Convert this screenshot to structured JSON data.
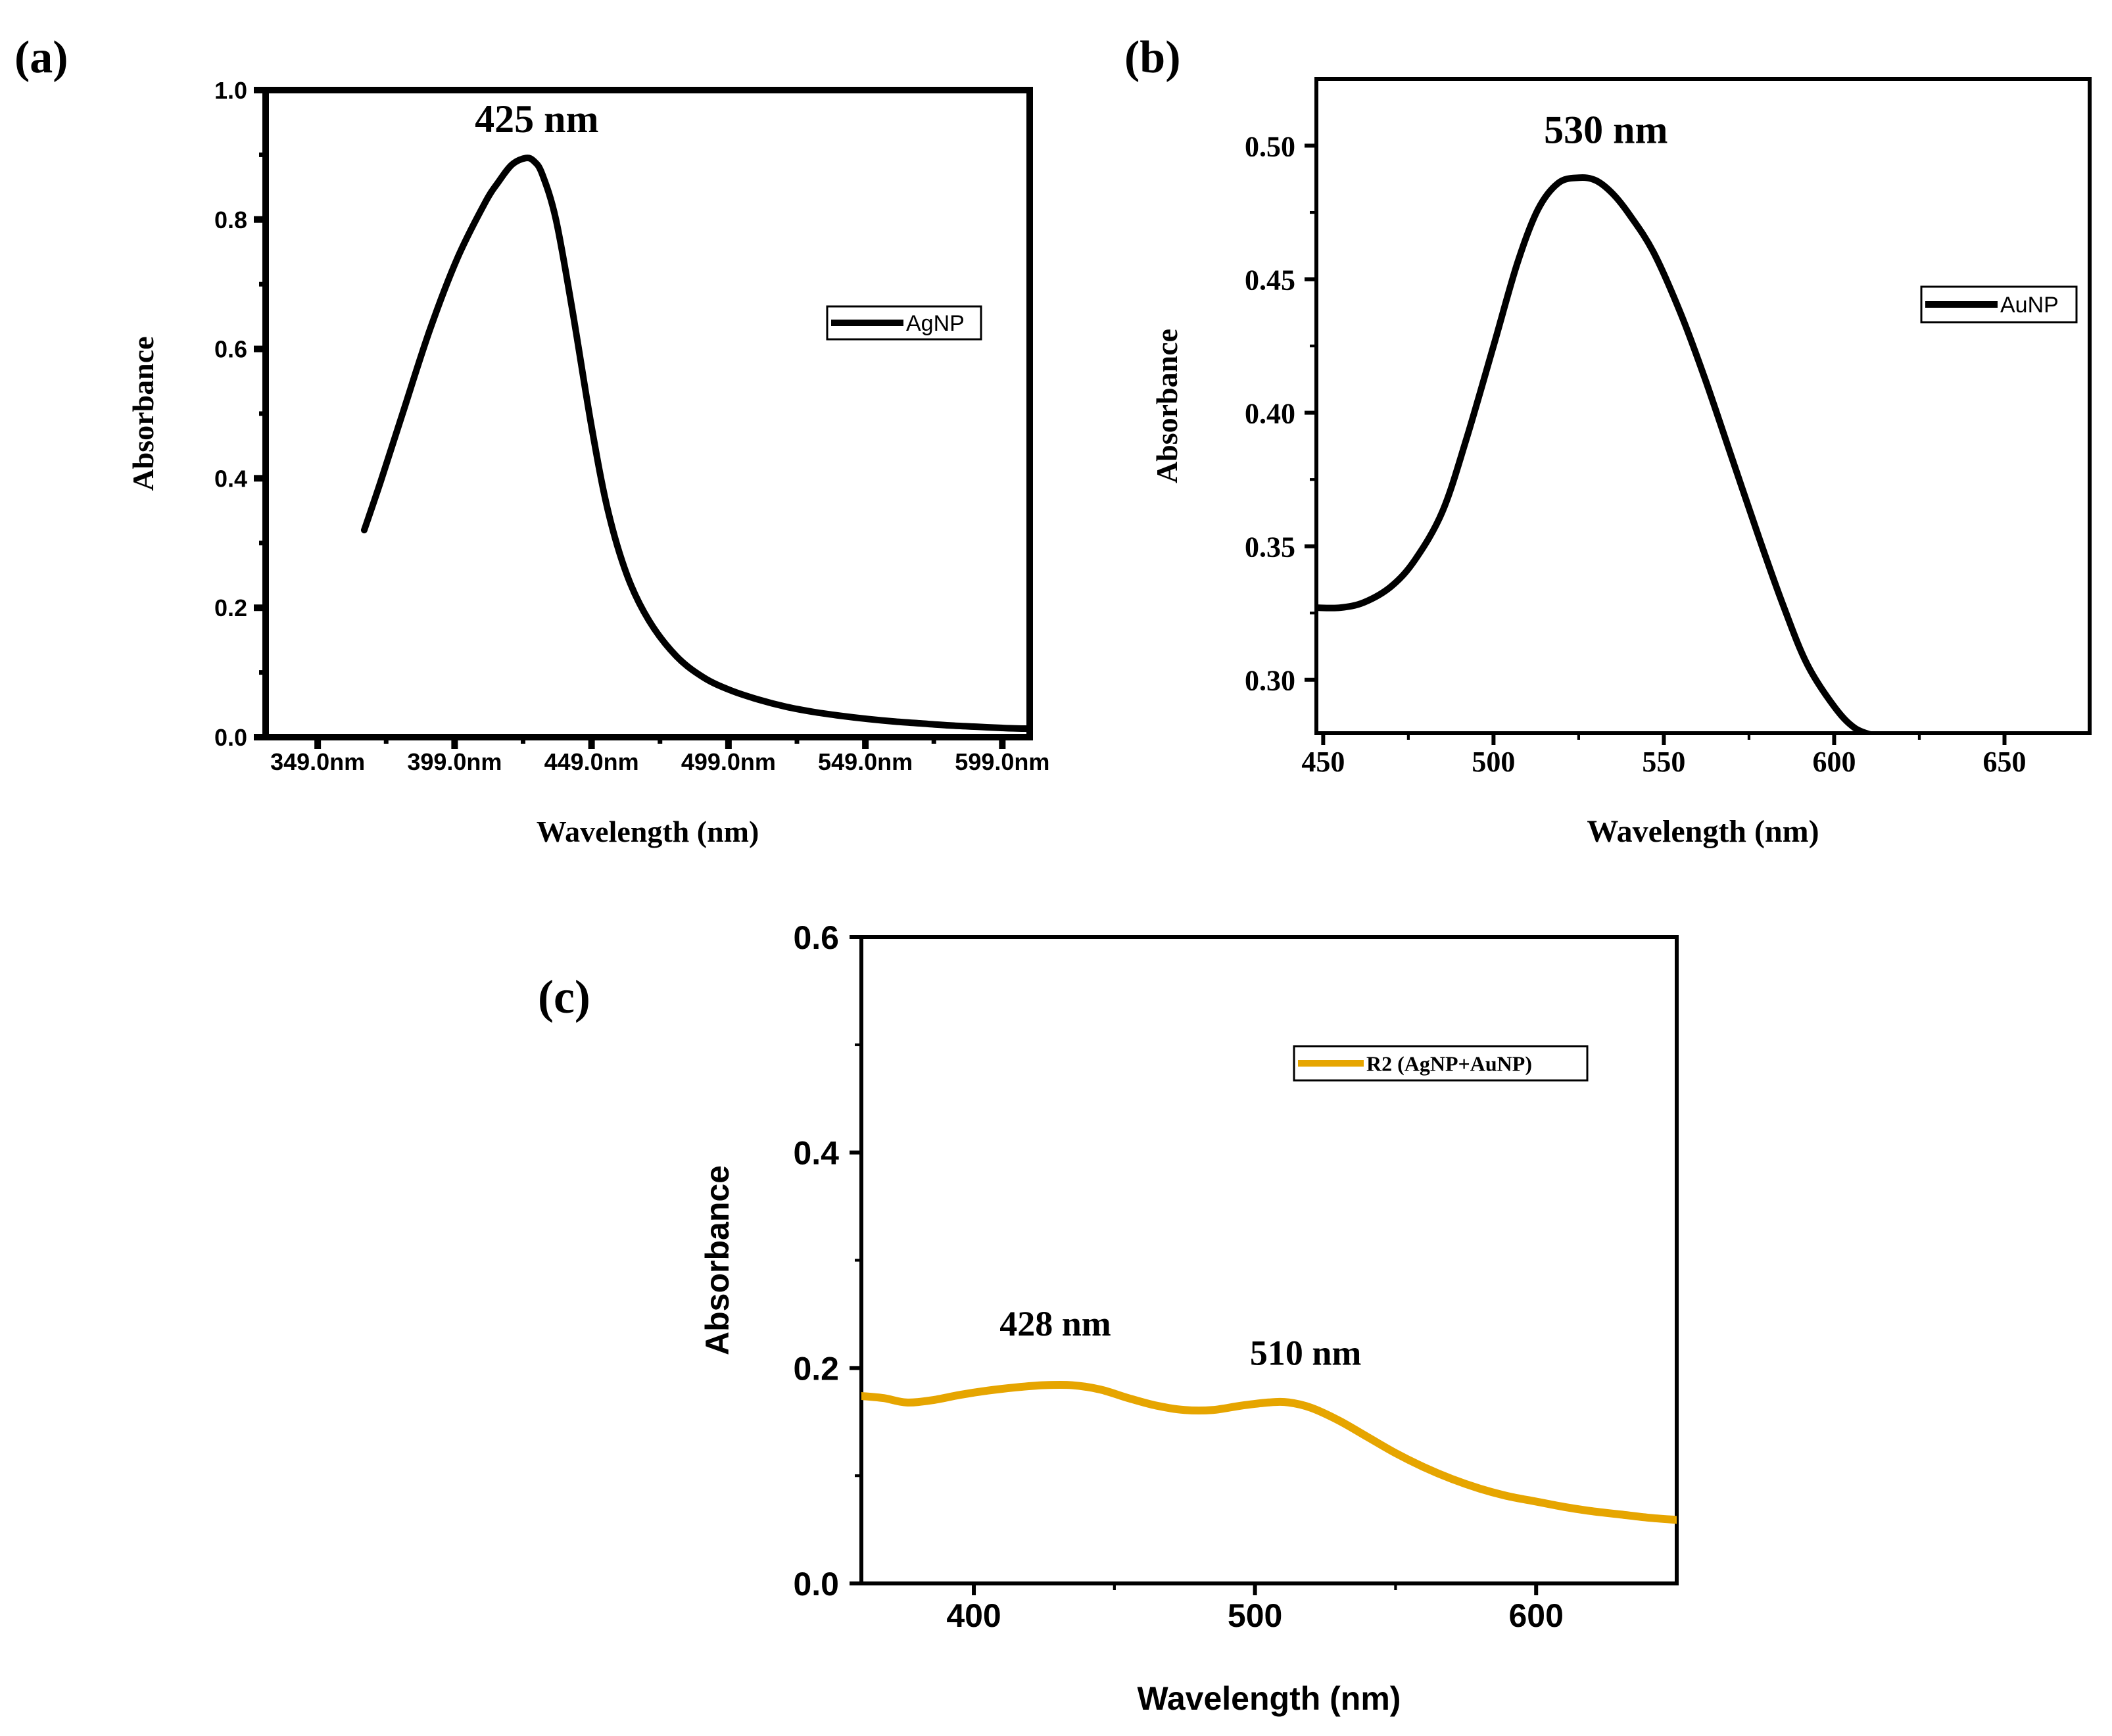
{
  "chart_data": [
    {
      "id": "a",
      "panel_label": "(a)",
      "type": "line",
      "title": "",
      "xlabel": "Wavelength (nm)",
      "ylabel": "Absorbance",
      "xlim": [
        330,
        609
      ],
      "ylim": [
        0,
        1.0
      ],
      "xticks": [
        349,
        399,
        449,
        499,
        549,
        599
      ],
      "xtick_labels": [
        "349.0nm",
        "399.0nm",
        "449.0nm",
        "499.0nm",
        "549.0nm",
        "599.0nm"
      ],
      "yticks": [
        0,
        0.2,
        0.4,
        0.6,
        0.8,
        1.0
      ],
      "ytick_labels": [
        "0.0",
        "0.2",
        "0.4",
        "0.6",
        "0.8",
        "1.0"
      ],
      "annotations": [
        {
          "text": "425 nm",
          "x": 429,
          "y": 0.935
        }
      ],
      "legend": {
        "position": "top-right",
        "entries": [
          "AgNP"
        ]
      },
      "series": [
        {
          "name": "AgNP",
          "color": "#000000",
          "x": [
            366,
            372,
            380,
            390,
            400,
            410,
            415,
            420,
            425,
            428,
            431,
            436,
            442,
            449,
            455,
            462,
            470,
            480,
            490,
            500,
            510,
            520,
            530,
            540,
            550,
            560,
            570,
            580,
            590,
            600,
            609
          ],
          "y": [
            0.32,
            0.395,
            0.5,
            0.63,
            0.74,
            0.825,
            0.858,
            0.885,
            0.895,
            0.89,
            0.87,
            0.8,
            0.66,
            0.48,
            0.35,
            0.25,
            0.18,
            0.125,
            0.092,
            0.072,
            0.058,
            0.047,
            0.039,
            0.033,
            0.028,
            0.024,
            0.021,
            0.018,
            0.016,
            0.014,
            0.013
          ]
        }
      ]
    },
    {
      "id": "b",
      "panel_label": "(b)",
      "type": "line",
      "title": "",
      "xlabel": "Wavelength (nm)",
      "ylabel": "Absorbance",
      "xlim": [
        448,
        675
      ],
      "ylim": [
        0.28,
        0.525
      ],
      "xticks": [
        450,
        500,
        550,
        600,
        650
      ],
      "xtick_labels": [
        "450",
        "500",
        "550",
        "600",
        "650"
      ],
      "yticks": [
        0.3,
        0.35,
        0.4,
        0.45,
        0.5
      ],
      "ytick_labels": [
        "0.30",
        "0.35",
        "0.40",
        "0.45",
        "0.50"
      ],
      "annotations": [
        {
          "text": "530 nm",
          "x": 533,
          "y": 0.501
        }
      ],
      "legend": {
        "position": "top-right",
        "entries": [
          "AuNP"
        ]
      },
      "series": [
        {
          "name": "AuNP",
          "color": "#000000",
          "x": [
            448,
            455,
            462,
            470,
            477,
            485,
            492,
            500,
            507,
            513,
            519,
            525,
            530,
            535,
            540,
            547,
            555,
            562,
            570,
            578,
            585,
            592,
            600,
            606,
            612
          ],
          "y": [
            0.327,
            0.327,
            0.329,
            0.335,
            0.345,
            0.363,
            0.39,
            0.425,
            0.456,
            0.476,
            0.486,
            0.488,
            0.487,
            0.482,
            0.474,
            0.46,
            0.437,
            0.413,
            0.383,
            0.353,
            0.328,
            0.306,
            0.29,
            0.282,
            0.279
          ]
        }
      ]
    },
    {
      "id": "c",
      "panel_label": "(c)",
      "type": "line",
      "title": "",
      "xlabel": "Wavelength (nm)",
      "ylabel": "Absorbance",
      "xlim": [
        360,
        650
      ],
      "ylim": [
        0,
        0.6
      ],
      "xticks": [
        400,
        500,
        600
      ],
      "xtick_labels": [
        "400",
        "500",
        "600"
      ],
      "yticks": [
        0,
        0.2,
        0.4,
        0.6
      ],
      "ytick_labels": [
        "0.0",
        "0.2",
        "0.4",
        "0.6"
      ],
      "annotations": [
        {
          "text": "428 nm",
          "x": 429,
          "y": 0.23
        },
        {
          "text": "510 nm",
          "x": 518,
          "y": 0.203
        }
      ],
      "legend": {
        "position": "top-right",
        "entries": [
          "R2 (AgNP+AuNP)"
        ]
      },
      "series": [
        {
          "name": "R2 (AgNP+AuNP)",
          "color": "#E6A500",
          "x": [
            360,
            368,
            376,
            385,
            395,
            405,
            415,
            425,
            435,
            445,
            455,
            465,
            475,
            485,
            495,
            505,
            512,
            520,
            530,
            540,
            550,
            560,
            570,
            580,
            590,
            600,
            610,
            620,
            630,
            640,
            650
          ],
          "y": [
            0.174,
            0.172,
            0.168,
            0.17,
            0.175,
            0.179,
            0.182,
            0.184,
            0.184,
            0.18,
            0.172,
            0.165,
            0.161,
            0.161,
            0.165,
            0.168,
            0.168,
            0.163,
            0.151,
            0.136,
            0.121,
            0.108,
            0.097,
            0.088,
            0.081,
            0.076,
            0.071,
            0.067,
            0.064,
            0.061,
            0.059
          ]
        }
      ]
    }
  ]
}
